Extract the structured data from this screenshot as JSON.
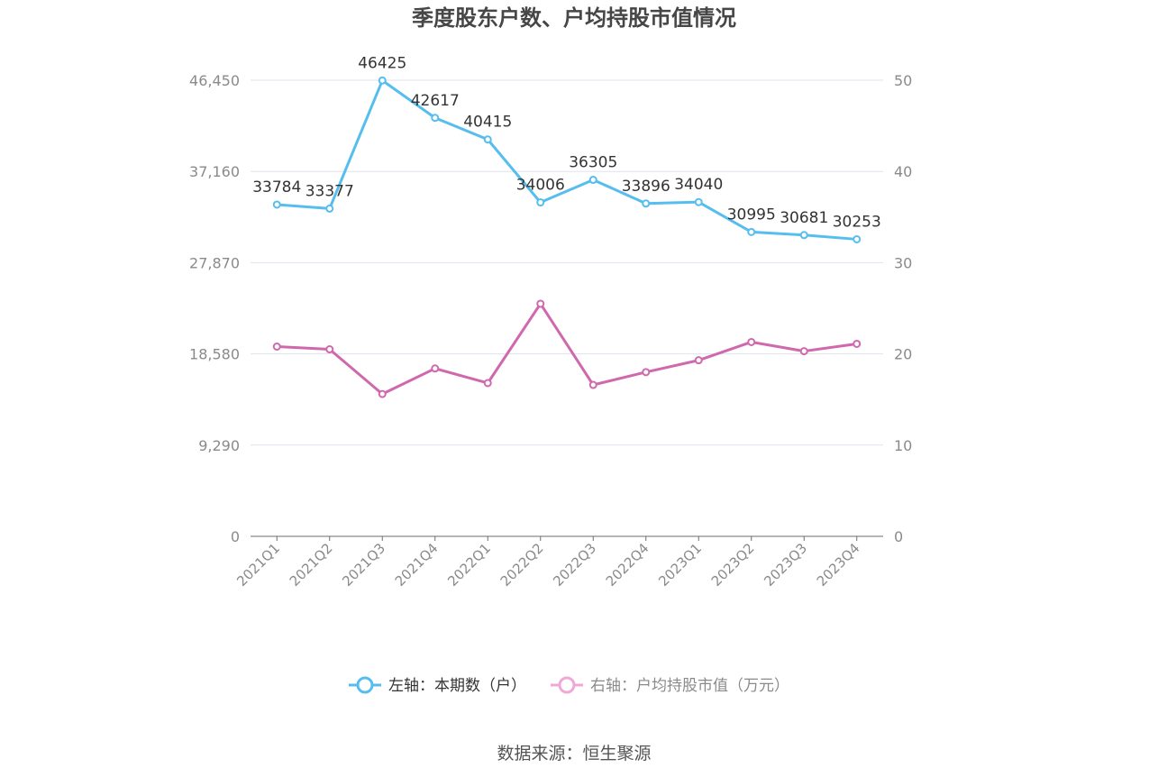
{
  "chart_data": {
    "type": "line",
    "title": "季度股东户数、户均持股市值情况",
    "categories": [
      "2021Q1",
      "2021Q2",
      "2021Q3",
      "2021Q4",
      "2022Q1",
      "2022Q2",
      "2022Q3",
      "2022Q4",
      "2023Q1",
      "2023Q2",
      "2023Q3",
      "2023Q4"
    ],
    "left_axis": {
      "ylim": [
        0,
        46450
      ],
      "ticks": [
        "0",
        "9,290",
        "18,580",
        "27,870",
        "37,160",
        "46,450"
      ]
    },
    "right_axis": {
      "ylim": [
        0,
        50
      ],
      "ticks": [
        "0",
        "10",
        "20",
        "30",
        "40",
        "50"
      ]
    },
    "series": [
      {
        "name": "左轴：本期数（户）",
        "axis": "left",
        "color": "#56bdef",
        "values": [
          33784,
          33377,
          46425,
          42617,
          40415,
          34006,
          36305,
          33896,
          34040,
          30995,
          30681,
          30253
        ],
        "labels": [
          "33784",
          "33377",
          "46425",
          "42617",
          "40415",
          "34006",
          "36305",
          "33896",
          "34040",
          "30995",
          "30681",
          "30253"
        ]
      },
      {
        "name": "右轴：户均持股市值（万元）",
        "axis": "right",
        "color": "#d068ad",
        "values": [
          20.8,
          20.5,
          15.6,
          18.4,
          16.8,
          25.5,
          16.6,
          18.0,
          19.3,
          21.3,
          20.3,
          21.1
        ]
      }
    ],
    "grid": true,
    "legend_position": "bottom",
    "source": "数据来源：恒生聚源"
  }
}
